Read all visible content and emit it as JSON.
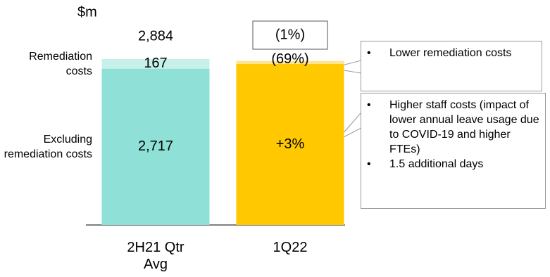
{
  "chart_data": {
    "type": "stacked-bar",
    "unit": "$m",
    "categories": [
      "2H21 Qtr Avg",
      "1Q22"
    ],
    "series": [
      {
        "name": "Excluding remediation costs",
        "colors": [
          "#8fe0d6",
          "#ffc800"
        ],
        "values": [
          2717,
          2798
        ],
        "value_labels": [
          "2,717",
          null
        ],
        "change_labels": [
          null,
          "+3%"
        ]
      },
      {
        "name": "Remediation costs",
        "colors": [
          "#c8f0eb",
          "#ffe58f"
        ],
        "values": [
          167,
          52
        ],
        "value_labels": [
          "167",
          null
        ],
        "change_labels": [
          null,
          "(69%)"
        ]
      }
    ],
    "totals": [
      2884,
      2850
    ],
    "total_labels": [
      "2,884",
      null
    ],
    "total_changes": [
      null,
      "(1%)"
    ],
    "annotations": [
      {
        "bullets": [
          "Lower remediation costs"
        ]
      },
      {
        "bullets": [
          "Higher staff costs (impact of lower annual leave usage due to COVID-19 and higher FTEs)",
          "1.5 additional days"
        ]
      }
    ]
  }
}
